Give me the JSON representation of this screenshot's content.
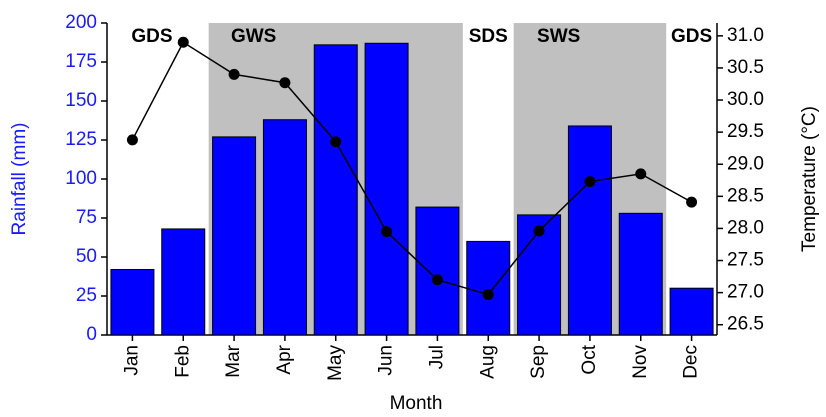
{
  "chart_data": {
    "type": "bar_line",
    "x_label": "Month",
    "y_label": "Rainfall (mm)",
    "y2_label": "Temperature (°C)",
    "categories": [
      "Jan",
      "Feb",
      "Mar",
      "Apr",
      "May",
      "Jun",
      "Jul",
      "Aug",
      "Sep",
      "Oct",
      "Nov",
      "Dec"
    ],
    "series": [
      {
        "type": "bar",
        "color": "#0000ff",
        "values": [
          42,
          68,
          127,
          138,
          186,
          187,
          82,
          60,
          77,
          134,
          78,
          30
        ]
      },
      {
        "type": "line",
        "axis": "y2",
        "color": "#000000",
        "values": [
          29.38,
          30.9,
          30.4,
          30.27,
          29.35,
          27.95,
          27.2,
          26.97,
          27.96,
          28.73,
          28.85,
          28.41
        ]
      }
    ],
    "seasons": [
      {
        "label": "GDS",
        "from": 0,
        "to": 1,
        "shaded": false
      },
      {
        "label": "GWS",
        "from": 2,
        "to": 6,
        "shaded": true
      },
      {
        "label": "SDS",
        "from": 7,
        "to": 7,
        "shaded": false
      },
      {
        "label": "SWS",
        "from": 8,
        "to": 10,
        "shaded": true
      },
      {
        "label": "GDS",
        "from": 11,
        "to": 11,
        "shaded": false
      }
    ],
    "shade_color": "#c0c0c0",
    "ylim": [
      0,
      200
    ],
    "yticks": [
      0,
      25,
      50,
      75,
      100,
      125,
      150,
      175,
      200
    ],
    "y_axis_color": "#1a1aff",
    "y2lim": [
      26.34,
      31.2
    ],
    "y2ticks": [
      26.5,
      {
        "value": 27,
        "label": "27.0"
      },
      27.5,
      {
        "value": 28,
        "label": "28.0"
      },
      28.5,
      {
        "value": 29,
        "label": "29.0"
      },
      29.5,
      {
        "value": 30,
        "label": "30.0"
      },
      30.5,
      {
        "value": 31,
        "label": "31.0"
      }
    ]
  }
}
